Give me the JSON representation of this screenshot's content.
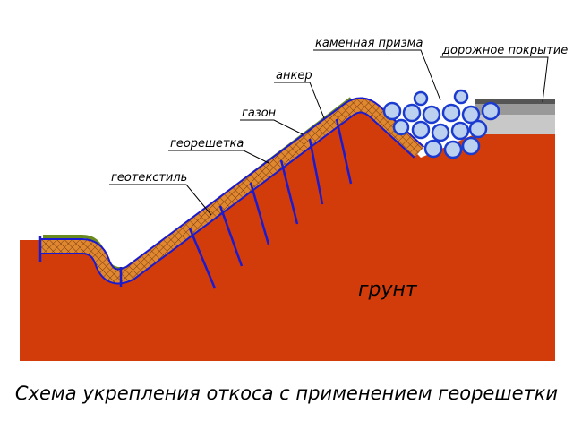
{
  "labels": {
    "stone_prism": "каменная призма",
    "road_surface": "дорожное покрытие",
    "anchor": "анкер",
    "lawn": "газон",
    "geogrid": "георешетка",
    "geotextile": "геотекстиль",
    "soil": "грунт"
  },
  "caption": "Схема укрепления откоса с применением георешетки"
}
